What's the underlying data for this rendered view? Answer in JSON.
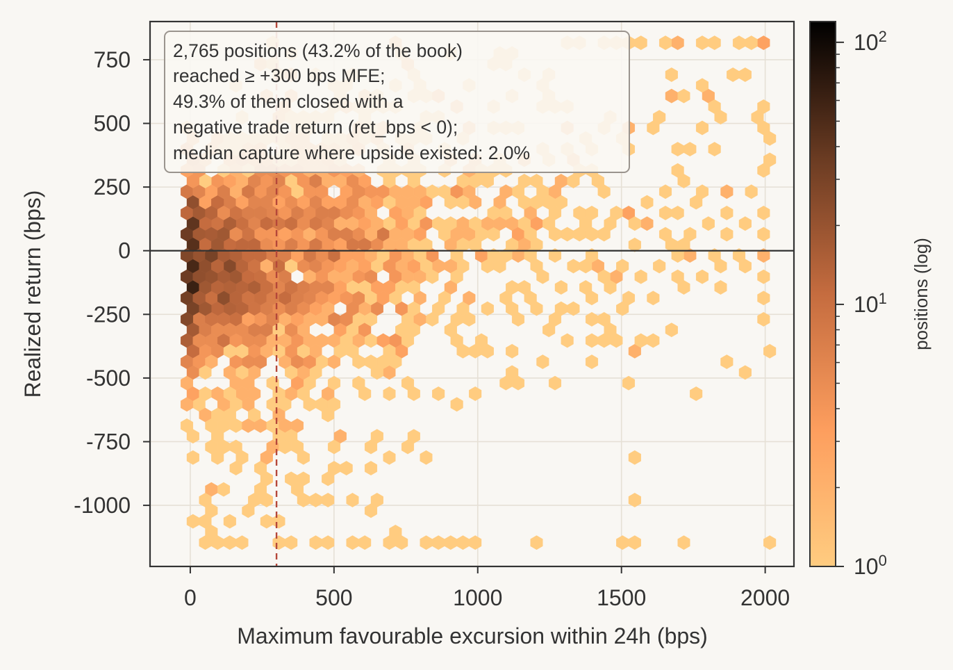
{
  "chart_data": {
    "type": "heatmap",
    "subtype": "hexbin",
    "xlabel": "Maximum favourable excursion within 24h (bps)",
    "ylabel": "Realized return (bps)",
    "xlim": [
      -140,
      2100
    ],
    "ylim": [
      -1240,
      900
    ],
    "x_ticks": [
      0,
      500,
      1000,
      1500,
      2000
    ],
    "x_tick_labels": [
      "0",
      "500",
      "1000",
      "1500",
      "2000"
    ],
    "y_ticks": [
      750,
      500,
      250,
      0,
      -250,
      -500,
      -750,
      -1000
    ],
    "y_tick_labels": [
      "750",
      "500",
      "250",
      "0",
      "-250",
      "-500",
      "-750",
      "-1000"
    ],
    "grid": true,
    "reference_lines": {
      "horizontal_y": 0,
      "vertical_x": 300,
      "vertical_style": "dashed",
      "vertical_color": "#b5473a"
    },
    "colorbar": {
      "label": "positions (log)",
      "scale": "log",
      "range": [
        1,
        120
      ],
      "ticks": [
        1,
        10,
        100
      ],
      "tick_base": "10",
      "tick_exponents": [
        "0",
        "1",
        "2"
      ],
      "colors": [
        "#ffcc80",
        "#fd9e5e",
        "#c56c3f",
        "#6a3b22",
        "#000000"
      ]
    },
    "annotation": {
      "lines": [
        "2,765 positions (43.2% of the book)",
        "reached ≥ +300 bps MFE;",
        "49.3% of them closed with a",
        "negative trade return (ret_bps < 0);",
        "median capture where upside existed: 2.0%"
      ],
      "position": "top-left"
    },
    "clusters": [
      {
        "cx": 40,
        "cy": -60,
        "sx": 100,
        "sy": 160,
        "n": 900,
        "weight": 1
      },
      {
        "cx": 200,
        "cy": -80,
        "sx": 150,
        "sy": 230,
        "n": 700,
        "weight": 1
      },
      {
        "cx": 380,
        "cy": 0,
        "sx": 220,
        "sy": 240,
        "n": 500,
        "weight": 1
      },
      {
        "cx": 600,
        "cy": 60,
        "sx": 260,
        "sy": 260,
        "n": 300,
        "weight": 1
      },
      {
        "cx": 900,
        "cy": 150,
        "sx": 320,
        "sy": 300,
        "n": 150,
        "weight": 1
      },
      {
        "cx": 1350,
        "cy": 250,
        "sx": 380,
        "sy": 350,
        "n": 80,
        "weight": 1
      },
      {
        "cx": 250,
        "cy": -600,
        "sx": 200,
        "sy": 250,
        "n": 80,
        "weight": 1
      }
    ],
    "scattered_points": [
      [
        1300,
        810
      ],
      [
        1360,
        810
      ],
      [
        1420,
        810
      ],
      [
        1470,
        810
      ],
      [
        1530,
        810
      ],
      [
        1580,
        810
      ],
      [
        1650,
        810
      ],
      [
        1700,
        810
      ],
      [
        1790,
        810
      ],
      [
        1840,
        810
      ],
      [
        1890,
        810
      ],
      [
        1950,
        810
      ],
      [
        1680,
        620
      ],
      [
        1760,
        650
      ],
      [
        1800,
        620
      ],
      [
        1900,
        690
      ],
      [
        1950,
        690
      ],
      [
        1980,
        540
      ],
      [
        2000,
        500
      ],
      [
        1600,
        500
      ],
      [
        1700,
        420
      ],
      [
        1740,
        380
      ],
      [
        1790,
        470
      ],
      [
        1840,
        400
      ],
      [
        2000,
        430
      ],
      [
        1640,
        230
      ],
      [
        1700,
        280
      ],
      [
        1790,
        250
      ],
      [
        1850,
        230
      ],
      [
        1960,
        230
      ],
      [
        2000,
        310
      ],
      [
        1530,
        170
      ],
      [
        1590,
        170
      ],
      [
        1700,
        130
      ],
      [
        1800,
        130
      ],
      [
        1870,
        130
      ],
      [
        1950,
        110
      ],
      [
        2000,
        60
      ],
      [
        1560,
        30
      ],
      [
        1640,
        60
      ],
      [
        1680,
        0
      ],
      [
        1740,
        0
      ],
      [
        1830,
        0
      ],
      [
        1900,
        0
      ],
      [
        1990,
        0
      ],
      [
        1500,
        -60
      ],
      [
        1560,
        -120
      ],
      [
        1650,
        -70
      ],
      [
        1700,
        -120
      ],
      [
        1780,
        -120
      ],
      [
        1850,
        -80
      ],
      [
        1940,
        -80
      ],
      [
        2000,
        -90
      ],
      [
        1540,
        -200
      ],
      [
        1600,
        -170
      ],
      [
        1700,
        -150
      ],
      [
        1860,
        -130
      ],
      [
        1980,
        -200
      ],
      [
        1550,
        -350
      ],
      [
        1540,
        -390
      ],
      [
        1880,
        -430
      ],
      [
        1950,
        -470
      ],
      [
        2000,
        -390
      ],
      [
        1750,
        -570
      ],
      [
        1540,
        -800
      ],
      [
        1550,
        -990
      ],
      [
        2000,
        -250
      ],
      [
        2000,
        -20
      ],
      [
        2000,
        160
      ],
      [
        2000,
        360
      ],
      [
        1500,
        -1140
      ],
      [
        1550,
        -1140
      ],
      [
        1700,
        -1150
      ],
      [
        2000,
        -1140
      ],
      [
        50,
        -1140
      ],
      [
        100,
        -1140
      ],
      [
        150,
        -1140
      ],
      [
        200,
        -1140
      ],
      [
        300,
        -1140
      ],
      [
        350,
        -1140
      ],
      [
        450,
        -1140
      ],
      [
        500,
        -1140
      ],
      [
        550,
        -1140
      ],
      [
        600,
        -1140
      ],
      [
        700,
        -1140
      ],
      [
        750,
        -1140
      ],
      [
        800,
        -1140
      ],
      [
        850,
        -1140
      ],
      [
        900,
        -1140
      ],
      [
        950,
        -1140
      ],
      [
        1000,
        -1140
      ],
      [
        1200,
        -1140
      ],
      [
        30,
        -800
      ],
      [
        60,
        -760
      ],
      [
        110,
        -800
      ],
      [
        50,
        -990
      ],
      [
        150,
        -1070
      ],
      [
        200,
        -1020
      ],
      [
        120,
        -950
      ],
      [
        80,
        -1110
      ],
      [
        220,
        -990
      ],
      [
        250,
        -930
      ],
      [
        270,
        -880
      ],
      [
        250,
        -980
      ],
      [
        350,
        -900
      ],
      [
        380,
        -980
      ],
      [
        420,
        -990
      ],
      [
        500,
        -900
      ],
      [
        580,
        -990
      ],
      [
        640,
        -1040
      ],
      [
        720,
        -1100
      ],
      [
        810,
        -800
      ],
      [
        700,
        -800
      ],
      [
        640,
        -720
      ],
      [
        620,
        -850
      ],
      [
        510,
        -780
      ],
      [
        530,
        -720
      ],
      [
        460,
        -660
      ],
      [
        400,
        -590
      ],
      [
        370,
        -720
      ],
      [
        600,
        -560
      ],
      [
        700,
        -560
      ],
      [
        770,
        -520
      ],
      [
        850,
        -560
      ],
      [
        930,
        -580
      ],
      [
        1000,
        -560
      ],
      [
        1130,
        -480
      ],
      [
        1230,
        -460
      ],
      [
        1400,
        -450
      ],
      [
        1240,
        -330
      ],
      [
        1310,
        -330
      ],
      [
        1450,
        -330
      ],
      [
        1080,
        -200
      ],
      [
        1140,
        -220
      ],
      [
        1160,
        -280
      ],
      [
        1260,
        -260
      ],
      [
        1330,
        -220
      ],
      [
        1410,
        -180
      ],
      [
        1370,
        -120
      ],
      [
        1460,
        -120
      ],
      [
        1280,
        -30
      ],
      [
        1330,
        -50
      ],
      [
        1400,
        -20
      ],
      [
        1440,
        -80
      ],
      [
        1280,
        80
      ],
      [
        1350,
        80
      ],
      [
        1410,
        60
      ],
      [
        1460,
        110
      ],
      [
        1200,
        120
      ],
      [
        1150,
        180
      ],
      [
        1240,
        210
      ],
      [
        1310,
        260
      ],
      [
        1380,
        300
      ],
      [
        1440,
        240
      ],
      [
        1100,
        300
      ],
      [
        1160,
        350
      ],
      [
        1230,
        370
      ],
      [
        1300,
        410
      ],
      [
        1370,
        430
      ],
      [
        1420,
        470
      ],
      [
        1300,
        500
      ],
      [
        1330,
        580
      ],
      [
        1240,
        630
      ],
      [
        1170,
        700
      ],
      [
        1100,
        760
      ],
      [
        1040,
        720
      ],
      [
        990,
        640
      ],
      [
        930,
        560
      ],
      [
        870,
        530
      ],
      [
        800,
        640
      ],
      [
        760,
        720
      ],
      [
        700,
        800
      ],
      [
        630,
        600
      ],
      [
        560,
        700
      ],
      [
        300,
        800
      ],
      [
        350,
        760
      ],
      [
        420,
        700
      ],
      [
        480,
        640
      ],
      [
        540,
        560
      ],
      [
        240,
        710
      ],
      [
        260,
        620
      ],
      [
        320,
        570
      ]
    ]
  }
}
